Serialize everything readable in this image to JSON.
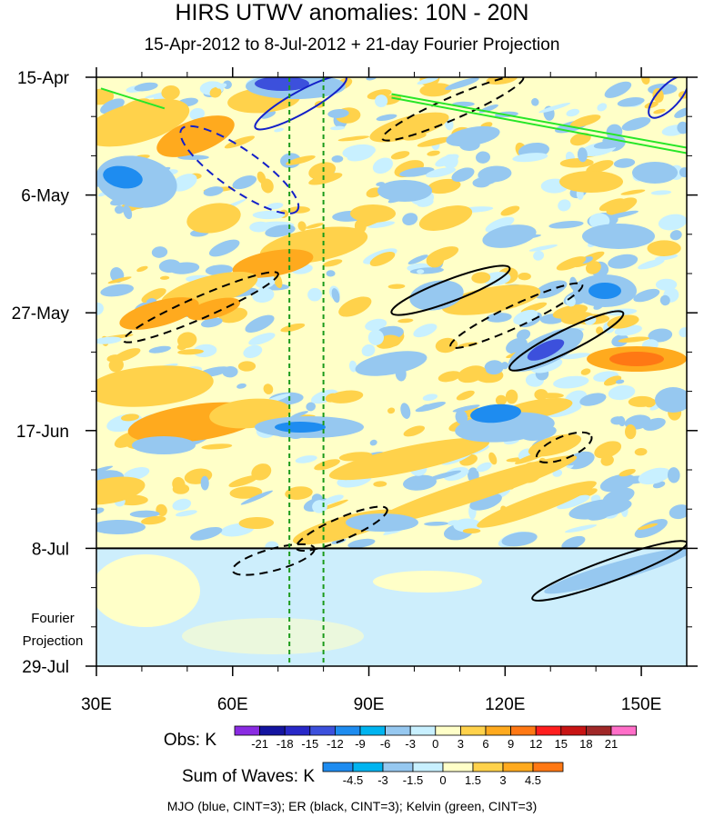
{
  "chart_data": {
    "type": "heatmap",
    "title": "HIRS UTWV anomalies: 10N - 20N",
    "subtitle": "15-Apr-2012 to 8-Jul-2012 + 21-day Fourier Projection",
    "x_axis": {
      "range_deg_e": [
        30,
        160
      ],
      "ticks": [
        30,
        60,
        90,
        120,
        150
      ],
      "tick_labels": [
        "30E",
        "60E",
        "90E",
        "120E",
        "150E"
      ]
    },
    "y_axis": {
      "range": [
        "2012-04-15",
        "2012-07-29"
      ],
      "ticks": [
        "2012-04-15",
        "2012-05-06",
        "2012-05-27",
        "2012-06-17",
        "2012-07-08",
        "2012-07-29"
      ],
      "tick_labels": [
        "15-Apr",
        "6-May",
        "27-May",
        "17-Jun",
        "8-Jul",
        "29-Jul"
      ],
      "direction": "time increases downward"
    },
    "forecast_start": "2012-07-08",
    "forecast_label_lines": [
      "Fourier",
      "Projection"
    ],
    "reference_lines_deg_e": [
      72.5,
      80
    ],
    "legend_obs": {
      "title": "Obs: K",
      "levels": [
        "-21",
        "-18",
        "-15",
        "-12",
        "-9",
        "-6",
        "-3",
        "0",
        "3",
        "6",
        "9",
        "12",
        "15",
        "18",
        "21"
      ],
      "colors": [
        "#8a2be2",
        "#1414a0",
        "#2828c8",
        "#3c50dc",
        "#1e8cf0",
        "#00b4f0",
        "#96c8f0",
        "#c8f0ff",
        "#ffffc8",
        "#ffd24b",
        "#ffaa1e",
        "#ff7814",
        "#ff1e1e",
        "#c81414",
        "#a02828",
        "#ff6ec8"
      ]
    },
    "legend_waves": {
      "title": "Sum of Waves: K",
      "levels": [
        "-4.5",
        "-3",
        "-1.5",
        "0",
        "1.5",
        "3",
        "4.5"
      ],
      "colors": [
        "#1e8cf0",
        "#00b4f0",
        "#96c8f0",
        "#c8f0ff",
        "#ffffc8",
        "#ffd24b",
        "#ffaa1e",
        "#ff7814"
      ]
    },
    "footnote": "MJO (blue, CINT=3); ER (black, CINT=3); Kelvin (green, CINT=3)",
    "field_colors": {
      "neg2": "#96c8f0",
      "neg3": "#1e8cf0",
      "neg4": "#3c50dc",
      "neg5": "#1414a0",
      "neu_neg": "#c8f0ff",
      "neu_pos": "#ffffc8",
      "pos2": "#ffd24b",
      "pos3": "#ffaa1e",
      "pos4": "#ff7814",
      "proj_bg": "#cdeefc"
    },
    "line_colors": {
      "mjo": "#1420c8",
      "er": "#000000",
      "kelvin": "#28e628",
      "ref": "#1a9a1a"
    },
    "contours": [
      {
        "wave": "MJO",
        "sign": "negative",
        "lon_range": [
          50,
          73
        ],
        "dates": [
          "2012-04-23",
          "2012-05-10"
        ]
      },
      {
        "wave": "MJO",
        "sign": "positive",
        "lon_range": [
          65,
          85
        ],
        "dates": [
          "2012-04-15",
          "2012-04-24"
        ]
      },
      {
        "wave": "MJO",
        "sign": "positive",
        "lon_range": [
          152,
          160
        ],
        "dates": [
          "2012-04-15",
          "2012-04-22"
        ]
      },
      {
        "wave": "ER",
        "sign": "negative",
        "lon_range": [
          93,
          124
        ],
        "dates": [
          "2012-04-15",
          "2012-04-26"
        ]
      },
      {
        "wave": "ER",
        "sign": "negative",
        "lon_range": [
          36,
          70
        ],
        "dates": [
          "2012-05-20",
          "2012-06-01"
        ]
      },
      {
        "wave": "ER",
        "sign": "positive",
        "lon_range": [
          95,
          121
        ],
        "dates": [
          "2012-05-19",
          "2012-05-27"
        ]
      },
      {
        "wave": "ER",
        "sign": "negative",
        "lon_range": [
          108,
          137
        ],
        "dates": [
          "2012-05-22",
          "2012-06-02"
        ]
      },
      {
        "wave": "ER",
        "sign": "positive",
        "lon_range": [
          121,
          146
        ],
        "dates": [
          "2012-05-27",
          "2012-06-06"
        ]
      },
      {
        "wave": "ER",
        "sign": "negative",
        "lon_range": [
          127,
          139
        ],
        "dates": [
          "2012-06-18",
          "2012-06-22"
        ]
      },
      {
        "wave": "ER",
        "sign": "negative",
        "lon_range": [
          74,
          94
        ],
        "dates": [
          "2012-07-01",
          "2012-07-08"
        ]
      },
      {
        "wave": "ER",
        "sign": "negative",
        "lon_range": [
          60,
          78
        ],
        "dates": [
          "2012-07-08",
          "2012-07-12"
        ]
      },
      {
        "wave": "ER",
        "sign": "positive",
        "lon_range": [
          126,
          160
        ],
        "dates": [
          "2012-07-07",
          "2012-07-17"
        ]
      },
      {
        "wave": "Kelvin",
        "sign": "positive",
        "lon_range": [
          31,
          45
        ],
        "dates": [
          "2012-04-17",
          "2012-04-17"
        ]
      },
      {
        "wave": "Kelvin",
        "sign": "positive",
        "lon_range": [
          95,
          160
        ],
        "dates": [
          "2012-04-18",
          "2012-04-24"
        ]
      }
    ]
  }
}
